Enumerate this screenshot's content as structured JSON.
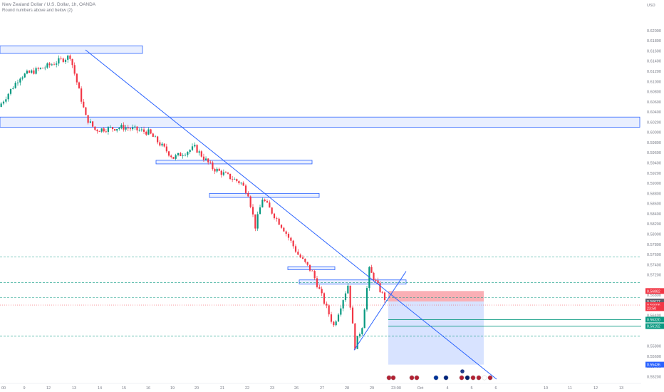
{
  "header": {
    "title": "New Zealand Dollar / U.S. Dollar, 1h, OANDA",
    "subtitle": "Round numbers above and below (2)"
  },
  "price_axis": {
    "currency": "USD",
    "ticks": [
      "0.62000",
      "0.61800",
      "0.61600",
      "0.61400",
      "0.61200",
      "0.61000",
      "0.60800",
      "0.60600",
      "0.60400",
      "0.60200",
      "0.60000",
      "0.59800",
      "0.59600",
      "0.59400",
      "0.59200",
      "0.59000",
      "0.58800",
      "0.58600",
      "0.58400",
      "0.58200",
      "0.58000",
      "0.57800",
      "0.57600",
      "0.57400",
      "0.57200",
      "0.56800",
      "0.56600",
      "0.56400",
      "0.56200",
      "0.55800",
      "0.55600",
      "0.55400",
      "0.55200"
    ]
  },
  "time_axis": {
    "ticks": [
      "00",
      "9",
      "12",
      "13",
      "14",
      "15",
      "16",
      "19",
      "20",
      "21",
      "22",
      "23",
      "26",
      "27",
      "28",
      "29",
      "23:00",
      "Oct",
      "4",
      "5",
      "6",
      "10",
      "11",
      "12",
      "13"
    ]
  },
  "price_labels": [
    {
      "text": "0.56882",
      "color": "#f23645",
      "price": 0.56882
    },
    {
      "text": "0.56677",
      "color": "#5d606b",
      "price": 0.56677
    },
    {
      "text": "0.56606",
      "color": "#f23645",
      "price": 0.56606
    },
    {
      "text": "23:50",
      "color": "#f23645",
      "price": 0.56545
    },
    {
      "text": "0.56320",
      "color": "#089981",
      "price": 0.5632
    },
    {
      "text": "0.56192",
      "color": "#089981",
      "price": 0.56192
    },
    {
      "text": "0.55436",
      "color": "#2962ff",
      "price": 0.55436
    }
  ],
  "colors": {
    "bull": "#089981",
    "bear": "#f23645",
    "trendline": "#2962ff",
    "zone_fill": "rgba(41,98,255,0.10)",
    "zone_border": "#2962ff",
    "stop_fill": "rgba(242,54,69,0.40)",
    "target_fill": "rgba(41,98,255,0.18)",
    "dashed_level": "#089981"
  },
  "event_icons": [
    "us-flag-icon",
    "us-flag-icon",
    "us-flag-icon",
    "us-flag-icon",
    "eu-flag-icon",
    "nz-flag-icon",
    "us-flag-icon",
    "au-flag-icon",
    "us-flag-icon",
    "us-flag-icon",
    "jp-flag-icon",
    "us-flag-icon"
  ],
  "chart_data": {
    "type": "candlestick",
    "symbol": "NZD/USD",
    "timeframe": "1h",
    "ylim": [
      0.5515,
      0.6225
    ],
    "series": [
      {
        "name": "price_path_close",
        "points": [
          [
            "00",
            0.605
          ],
          [
            "9",
            0.611
          ],
          [
            "12",
            0.613
          ],
          [
            "13",
            0.615
          ],
          [
            "13b",
            0.603
          ],
          [
            "14",
            0.6005
          ],
          [
            "15",
            0.601
          ],
          [
            "16",
            0.6
          ],
          [
            "19",
            0.595
          ],
          [
            "20",
            0.597
          ],
          [
            "20b",
            0.593
          ],
          [
            "21",
            0.59
          ],
          [
            "22",
            0.588
          ],
          [
            "22b",
            0.5815
          ],
          [
            "23",
            0.587
          ],
          [
            "23b",
            0.581
          ],
          [
            "26",
            0.576
          ],
          [
            "26b",
            0.5725
          ],
          [
            "27",
            0.562
          ],
          [
            "27b",
            0.57
          ],
          [
            "28",
            0.558
          ],
          [
            "28b",
            0.562
          ],
          [
            "29",
            0.573
          ],
          [
            "29b",
            0.569
          ],
          [
            "23:00",
            0.5665
          ]
        ]
      }
    ],
    "levels": {
      "resistance_zones": [
        [
          0.6155,
          0.617
        ],
        [
          0.601,
          0.603
        ],
        [
          0.5938,
          0.5945
        ],
        [
          0.5872,
          0.588
        ],
        [
          0.573,
          0.5736
        ],
        [
          0.5702,
          0.571
        ]
      ],
      "dashed_levels": [
        0.5755,
        0.5705,
        0.5675,
        0.5632,
        0.5619,
        0.56
      ],
      "trade": {
        "entry": 0.56677,
        "stop": 0.56882,
        "target": 0.55436,
        "tp1": 0.5632,
        "tp2": 0.56192
      }
    },
    "grid": false
  }
}
